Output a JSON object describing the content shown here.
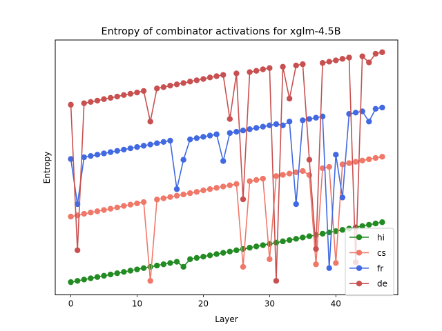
{
  "chart_data": {
    "type": "line",
    "title": "Entropy of combinator activations for xglm-4.5B",
    "xlabel": "Layer",
    "ylabel": "Entropy",
    "xlim": [
      -2.35,
      49.35
    ],
    "ylim": [
      0.0,
      1.0
    ],
    "x_ticks": [
      0,
      10,
      20,
      30,
      40
    ],
    "y_ticks_shown": false,
    "legend_position": "lower right",
    "x": [
      0,
      1,
      2,
      3,
      4,
      5,
      6,
      7,
      8,
      9,
      10,
      11,
      12,
      13,
      14,
      15,
      16,
      17,
      18,
      19,
      20,
      21,
      22,
      23,
      24,
      25,
      26,
      27,
      28,
      29,
      30,
      31,
      32,
      33,
      34,
      35,
      36,
      37,
      38,
      39,
      40,
      41,
      42,
      43,
      44,
      45,
      46,
      47
    ],
    "series": [
      {
        "name": "hi",
        "color": "#228b22",
        "values": [
          0.05,
          0.055,
          0.06,
          0.065,
          0.07,
          0.075,
          0.08,
          0.085,
          0.09,
          0.095,
          0.1,
          0.105,
          0.11,
          0.115,
          0.12,
          0.125,
          0.13,
          0.11,
          0.14,
          0.145,
          0.15,
          0.155,
          0.16,
          0.165,
          0.17,
          0.175,
          0.18,
          0.185,
          0.19,
          0.195,
          0.2,
          0.205,
          0.21,
          0.215,
          0.22,
          0.225,
          0.23,
          0.235,
          0.24,
          0.245,
          0.25,
          0.255,
          0.26,
          0.265,
          0.27,
          0.275,
          0.28,
          0.285
        ]
      },
      {
        "name": "cs",
        "color": "#f07868",
        "values": [
          0.307,
          0.312,
          0.318,
          0.323,
          0.328,
          0.333,
          0.338,
          0.343,
          0.349,
          0.354,
          0.359,
          0.364,
          0.055,
          0.374,
          0.379,
          0.384,
          0.389,
          0.394,
          0.399,
          0.404,
          0.41,
          0.415,
          0.42,
          0.425,
          0.43,
          0.435,
          0.11,
          0.446,
          0.451,
          0.456,
          0.14,
          0.466,
          0.471,
          0.476,
          0.481,
          0.486,
          0.47,
          0.12,
          0.497,
          0.502,
          0.125,
          0.512,
          0.517,
          0.522,
          0.527,
          0.532,
          0.537,
          0.542
        ]
      },
      {
        "name": "fr",
        "color": "#4169e1",
        "values": [
          0.533,
          0.356,
          0.54,
          0.545,
          0.55,
          0.555,
          0.56,
          0.565,
          0.57,
          0.575,
          0.58,
          0.585,
          0.59,
          0.595,
          0.6,
          0.605,
          0.415,
          0.53,
          0.61,
          0.615,
          0.62,
          0.625,
          0.63,
          0.525,
          0.635,
          0.64,
          0.645,
          0.65,
          0.655,
          0.66,
          0.665,
          0.67,
          0.665,
          0.68,
          0.356,
          0.685,
          0.69,
          0.695,
          0.7,
          0.105,
          0.55,
          0.382,
          0.71,
          0.715,
          0.72,
          0.68,
          0.73,
          0.735
        ]
      },
      {
        "name": "de",
        "color": "#c85050",
        "values": [
          0.746,
          0.175,
          0.752,
          0.757,
          0.762,
          0.768,
          0.773,
          0.778,
          0.784,
          0.789,
          0.794,
          0.8,
          0.68,
          0.81,
          0.815,
          0.821,
          0.826,
          0.831,
          0.837,
          0.842,
          0.847,
          0.853,
          0.858,
          0.863,
          0.69,
          0.869,
          0.375,
          0.874,
          0.879,
          0.885,
          0.89,
          0.055,
          0.895,
          0.77,
          0.9,
          0.905,
          0.53,
          0.18,
          0.91,
          0.915,
          0.92,
          0.926,
          0.931,
          0.128,
          0.936,
          0.912,
          0.946,
          0.952
        ]
      }
    ]
  }
}
